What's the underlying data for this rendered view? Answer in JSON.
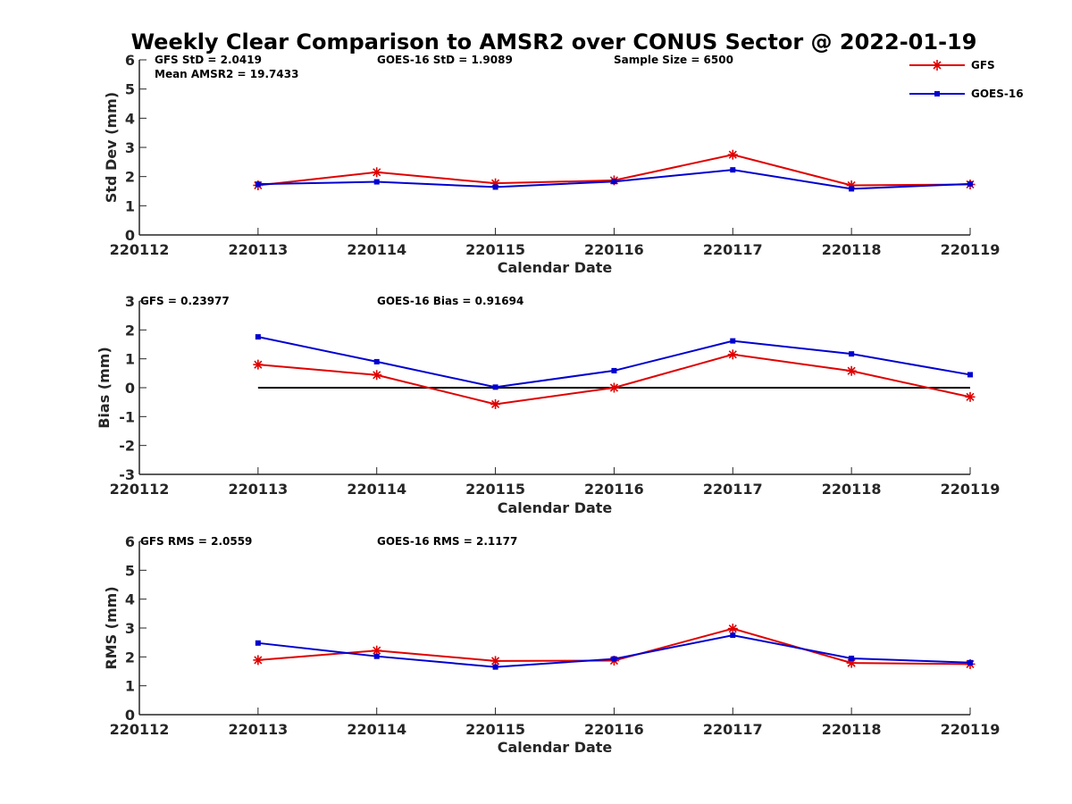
{
  "title": "Weekly Clear Comparison to AMSR2 over CONUS Sector @ 2022-01-19",
  "legend": {
    "placement": "top-right",
    "entries": [
      "GFS",
      "GOES-16"
    ]
  },
  "colors": {
    "GFS": "#e00000",
    "GOES-16": "#0000d0",
    "zero_line": "#000000",
    "axis": "#262626"
  },
  "chart_data": [
    {
      "type": "line",
      "xlabel": "Calendar Date",
      "ylabel": "Std Dev (mm)",
      "x_ticks": [
        "220112",
        "220113",
        "220114",
        "220115",
        "220116",
        "220117",
        "220118",
        "220119"
      ],
      "categories": [
        "220113",
        "220114",
        "220115",
        "220116",
        "220117",
        "220118",
        "220119"
      ],
      "ylim": [
        0,
        6
      ],
      "y_ticks": [
        "0",
        "1",
        "2",
        "3",
        "4",
        "5",
        "6"
      ],
      "series": [
        {
          "name": "GFS",
          "marker": "star",
          "values": [
            1.7,
            2.15,
            1.77,
            1.87,
            2.75,
            1.7,
            1.73
          ]
        },
        {
          "name": "GOES-16",
          "marker": "square",
          "values": [
            1.74,
            1.82,
            1.64,
            1.83,
            2.23,
            1.58,
            1.75
          ]
        }
      ],
      "annotations": [
        "GFS StD = 2.0419",
        "GOES-16 StD = 1.9089",
        "Sample Size = 6500",
        "Mean AMSR2 = 19.7433"
      ]
    },
    {
      "type": "line",
      "xlabel": "Calendar Date",
      "ylabel": "Bias (mm)",
      "x_ticks": [
        "220112",
        "220113",
        "220114",
        "220115",
        "220116",
        "220117",
        "220118",
        "220119"
      ],
      "categories": [
        "220113",
        "220114",
        "220115",
        "220116",
        "220117",
        "220118",
        "220119"
      ],
      "ylim": [
        -3,
        3
      ],
      "y_ticks": [
        "-3",
        "-2",
        "-1",
        "0",
        "1",
        "2",
        "3"
      ],
      "zero_line": true,
      "series": [
        {
          "name": "GFS",
          "marker": "star",
          "values": [
            0.8,
            0.44,
            -0.57,
            0.0,
            1.15,
            0.58,
            -0.32
          ]
        },
        {
          "name": "GOES-16",
          "marker": "square",
          "values": [
            1.76,
            0.9,
            0.02,
            0.59,
            1.62,
            1.17,
            0.45
          ]
        }
      ],
      "annotations": [
        "GFS = 0.23977",
        "GOES-16 Bias  = 0.91694"
      ]
    },
    {
      "type": "line",
      "xlabel": "Calendar Date",
      "ylabel": "RMS (mm)",
      "x_ticks": [
        "220112",
        "220113",
        "220114",
        "220115",
        "220116",
        "220117",
        "220118",
        "220119"
      ],
      "categories": [
        "220113",
        "220114",
        "220115",
        "220116",
        "220117",
        "220118",
        "220119"
      ],
      "ylim": [
        0,
        6
      ],
      "y_ticks": [
        "0",
        "1",
        "2",
        "3",
        "4",
        "5",
        "6"
      ],
      "series": [
        {
          "name": "GFS",
          "marker": "star",
          "values": [
            1.89,
            2.22,
            1.86,
            1.87,
            2.98,
            1.79,
            1.75
          ]
        },
        {
          "name": "GOES-16",
          "marker": "square",
          "values": [
            2.48,
            2.02,
            1.65,
            1.93,
            2.75,
            1.95,
            1.8
          ]
        }
      ],
      "annotations": [
        "GFS RMS = 2.0559",
        "GOES-16 RMS = 2.1177"
      ]
    }
  ]
}
